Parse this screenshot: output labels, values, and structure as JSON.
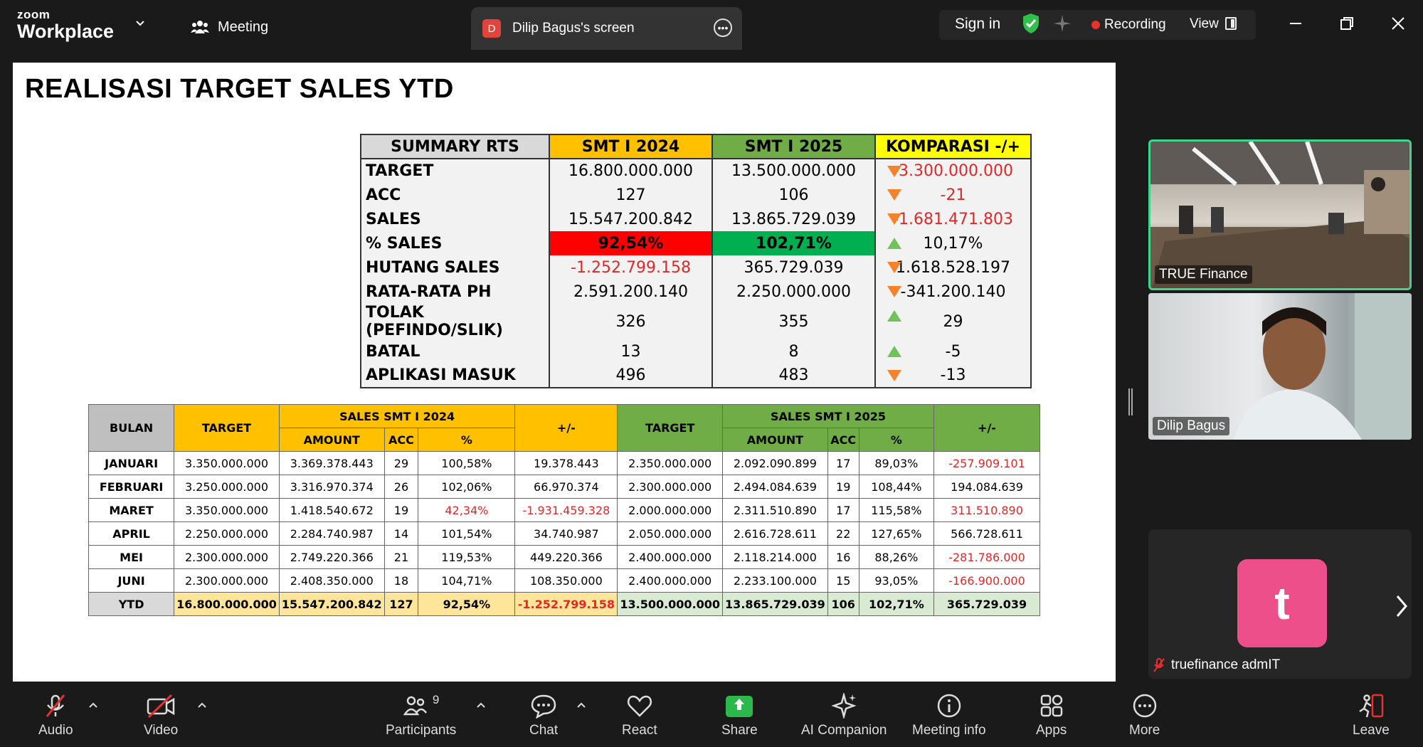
{
  "app": {
    "brand_small": "zoom",
    "brand_large": "Workplace"
  },
  "topbar": {
    "meeting_label": "Meeting",
    "screen_tab": {
      "badge": "D",
      "label": "Dilip Bagus's screen"
    },
    "sign_in": "Sign in",
    "recording": "Recording",
    "view": "View"
  },
  "slide": {
    "title": "REALISASI TARGET SALES YTD",
    "summary": {
      "headers": [
        "SUMMARY RTS",
        "SMT I 2024",
        "SMT I 2025",
        "KOMPARASI -/+"
      ],
      "rows": [
        {
          "label": "TARGET",
          "v2024": "16.800.000.000",
          "v2025": "13.500.000.000",
          "cmp": "-3.300.000.000",
          "dir": "down",
          "cmp_red": true
        },
        {
          "label": "ACC",
          "v2024": "127",
          "v2025": "106",
          "cmp": "-21",
          "dir": "down",
          "cmp_red": true
        },
        {
          "label": "SALES",
          "v2024": "15.547.200.842",
          "v2025": "13.865.729.039",
          "cmp": "-1.681.471.803",
          "dir": "down",
          "cmp_red": true
        },
        {
          "label": "% SALES",
          "v2024": "92,54%",
          "v2025": "102,71%",
          "cmp": "10,17%",
          "dir": "up",
          "cmp_red": false
        },
        {
          "label": "HUTANG SALES",
          "v2024": "-1.252.799.158",
          "v2025": "365.729.039",
          "cmp": "1.618.528.197",
          "dir": "down",
          "cmp_red": false
        },
        {
          "label": "RATA-RATA PH",
          "v2024": "2.591.200.140",
          "v2025": "2.250.000.000",
          "cmp": "-341.200.140",
          "dir": "down",
          "cmp_red": false
        },
        {
          "label": "TOLAK (PEFINDO/SLIK)",
          "v2024": "326",
          "v2025": "355",
          "cmp": "29",
          "dir": "up",
          "cmp_red": false
        },
        {
          "label": "BATAL",
          "v2024": "13",
          "v2025": "8",
          "cmp": "-5",
          "dir": "up",
          "cmp_red": false
        },
        {
          "label": "APLIKASI MASUK",
          "v2024": "496",
          "v2025": "483",
          "cmp": "-13",
          "dir": "down",
          "cmp_red": false
        }
      ]
    },
    "monthly": {
      "h_bulan": "BULAN",
      "h_target": "TARGET",
      "h_sales2024": "SALES SMT I 2024",
      "h_sales2025": "SALES SMT I 2025",
      "h_diff": "+/-",
      "h_amount": "AMOUNT",
      "h_acc": "ACC",
      "h_pct": "%",
      "rows": [
        [
          "JANUARI",
          "3.350.000.000",
          "3.369.378.443",
          "29",
          "100,58%",
          "19.378.443",
          "2.350.000.000",
          "2.092.090.899",
          "17",
          "89,03%",
          "-257.909.101"
        ],
        [
          "FEBRUARI",
          "3.250.000.000",
          "3.316.970.374",
          "26",
          "102,06%",
          "66.970.374",
          "2.300.000.000",
          "2.494.084.639",
          "19",
          "108,44%",
          "194.084.639"
        ],
        [
          "MARET",
          "3.350.000.000",
          "1.418.540.672",
          "19",
          "42,34%",
          "-1.931.459.328",
          "2.000.000.000",
          "2.311.510.890",
          "17",
          "115,58%",
          "311.510.890"
        ],
        [
          "APRIL",
          "2.250.000.000",
          "2.284.740.987",
          "14",
          "101,54%",
          "34.740.987",
          "2.050.000.000",
          "2.616.728.611",
          "22",
          "127,65%",
          "566.728.611"
        ],
        [
          "MEI",
          "2.300.000.000",
          "2.749.220.366",
          "21",
          "119,53%",
          "449.220.366",
          "2.400.000.000",
          "2.118.214.000",
          "16",
          "88,26%",
          "-281.786.000"
        ],
        [
          "JUNI",
          "2.300.000.000",
          "2.408.350.000",
          "18",
          "104,71%",
          "108.350.000",
          "2.400.000.000",
          "2.233.100.000",
          "15",
          "93,05%",
          "-166.900.000"
        ]
      ],
      "ytd": [
        "YTD",
        "16.800.000.000",
        "15.547.200.842",
        "127",
        "92,54%",
        "-1.252.799.158",
        "13.500.000.000",
        "13.865.729.039",
        "106",
        "102,71%",
        "365.729.039"
      ]
    }
  },
  "participants": [
    {
      "name": "TRUE Finance"
    },
    {
      "name": "Dilip Bagus"
    },
    {
      "name": "truefinance admIT",
      "avatar_letter": "t",
      "avatar_color": "#ec4f8a"
    }
  ],
  "toolbar": {
    "audio": "Audio",
    "video": "Video",
    "participants": "Participants",
    "participants_count": "9",
    "chat": "Chat",
    "react": "React",
    "share": "Share",
    "ai_companion": "AI Companion",
    "meeting_info": "Meeting info",
    "apps": "Apps",
    "more": "More",
    "leave": "Leave"
  },
  "colors": {
    "orange": "#ffc000",
    "green": "#70ad47",
    "yellow": "#ffff00",
    "red_cell": "#ff0000",
    "green_cell": "#00b050",
    "share_green": "#2cb84a"
  }
}
